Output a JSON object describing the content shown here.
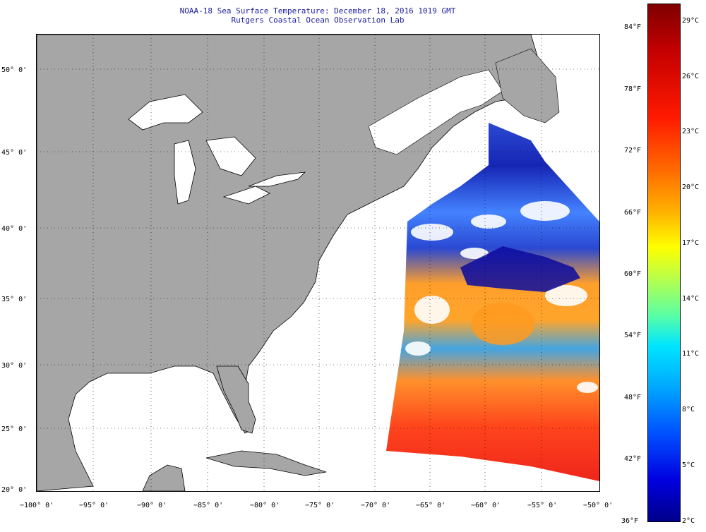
{
  "header": {
    "title_line1": "NOAA-18 Sea Surface Temperature:  December 18, 2016 1019 GMT",
    "title_line2": "Rutgers Coastal Ocean Observation Lab"
  },
  "map": {
    "lat_labels": [
      "50° 0'",
      "45° 0'",
      "40° 0'",
      "35° 0'",
      "30° 0'",
      "25° 0'",
      "20° 0'"
    ],
    "lon_labels": [
      "−100° 0'",
      "−95° 0'",
      "−90° 0'",
      "−85° 0'",
      "−80° 0'",
      "−75° 0'",
      "−70° 0'",
      "−65° 0'",
      "−60° 0'",
      "−55° 0'",
      "−50° 0'"
    ],
    "colors": {
      "land": "#a6a6a6",
      "no_data": "#ffffff",
      "gridline": "#000000"
    }
  },
  "colorbar": {
    "fahrenheit_labels": [
      "84°F",
      "78°F",
      "72°F",
      "66°F",
      "60°F",
      "54°F",
      "48°F",
      "42°F",
      "36°F"
    ],
    "celsius_labels": [
      "29°C",
      "26°C",
      "23°C",
      "20°C",
      "17°C",
      "14°C",
      "11°C",
      "8°C",
      "5°C",
      "2°C"
    ]
  }
}
